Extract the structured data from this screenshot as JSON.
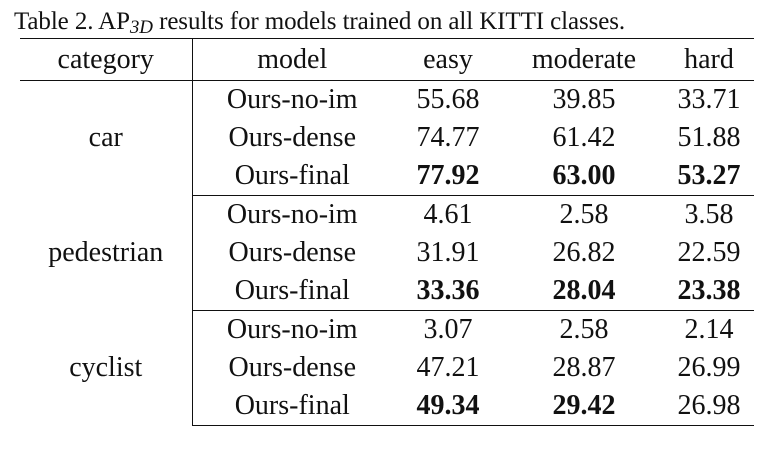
{
  "caption": {
    "prefix": "Table 2. AP",
    "subscript": "3D",
    "suffix": " results for models trained on all KITTI classes."
  },
  "table": {
    "headers": [
      "category",
      "model",
      "easy",
      "moderate",
      "hard"
    ],
    "groups": [
      {
        "category": "car",
        "rows": [
          {
            "model": "Ours-no-im",
            "easy": "55.68",
            "moderate": "39.85",
            "hard": "33.71",
            "bold": [
              false,
              false,
              false
            ]
          },
          {
            "model": "Ours-dense",
            "easy": "74.77",
            "moderate": "61.42",
            "hard": "51.88",
            "bold": [
              false,
              false,
              false
            ]
          },
          {
            "model": "Ours-final",
            "easy": "77.92",
            "moderate": "63.00",
            "hard": "53.27",
            "bold": [
              true,
              true,
              true
            ]
          }
        ]
      },
      {
        "category": "pedestrian",
        "rows": [
          {
            "model": "Ours-no-im",
            "easy": "4.61",
            "moderate": "2.58",
            "hard": "3.58",
            "bold": [
              false,
              false,
              false
            ]
          },
          {
            "model": "Ours-dense",
            "easy": "31.91",
            "moderate": "26.82",
            "hard": "22.59",
            "bold": [
              false,
              false,
              false
            ]
          },
          {
            "model": "Ours-final",
            "easy": "33.36",
            "moderate": "28.04",
            "hard": "23.38",
            "bold": [
              true,
              true,
              true
            ]
          }
        ]
      },
      {
        "category": "cyclist",
        "rows": [
          {
            "model": "Ours-no-im",
            "easy": "3.07",
            "moderate": "2.58",
            "hard": "2.14",
            "bold": [
              false,
              false,
              false
            ]
          },
          {
            "model": "Ours-dense",
            "easy": "47.21",
            "moderate": "28.87",
            "hard": "26.99",
            "bold": [
              false,
              false,
              false
            ]
          },
          {
            "model": "Ours-final",
            "easy": "49.34",
            "moderate": "29.42",
            "hard": "26.98",
            "bold": [
              true,
              true,
              false
            ]
          }
        ]
      }
    ]
  }
}
